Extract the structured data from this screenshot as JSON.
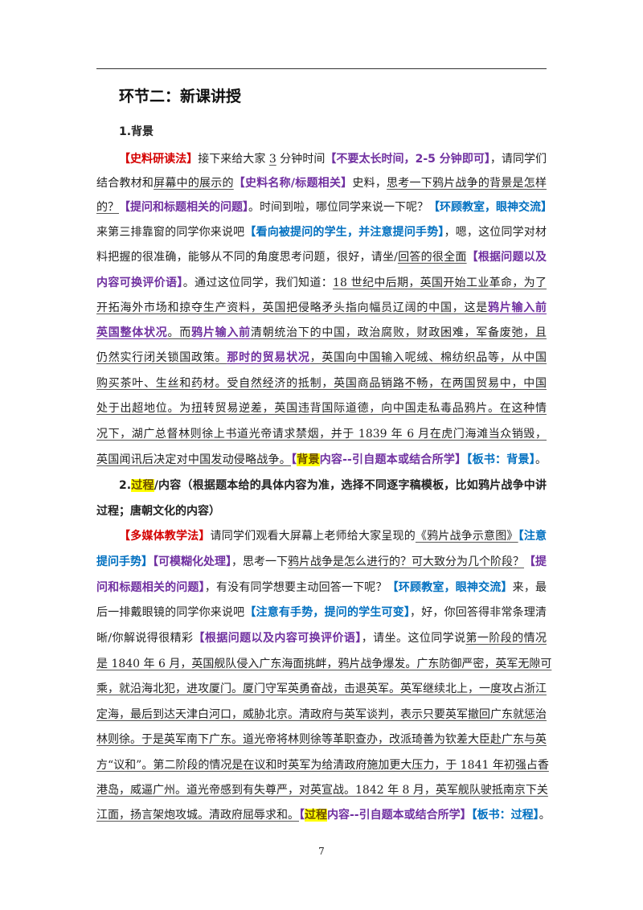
{
  "page": {
    "section_title": "环节二：新课讲授",
    "heading1": "1.背景",
    "heading2": [
      [
        {
          "t": "2.",
          "s": "n"
        },
        {
          "t": "过程",
          "s": "hl"
        },
        {
          "t": "/内容（根据题本给的具体内容为准，选择不同逐字稿模板，比如鸦片战争中讲",
          "s": "n"
        }
      ],
      [
        {
          "t": "过程；唐朝文化的内容）",
          "s": "n"
        }
      ]
    ],
    "paragraph1": [
      [
        {
          "t": "【史料研读法】",
          "s": "r"
        },
        {
          "t": "接下来给大家 ",
          "s": "n"
        },
        {
          "t": "3",
          "s": "u"
        },
        {
          "t": " 分钟时间",
          "s": "n"
        },
        {
          "t": "【不要太长时间，2-5 分钟即可】",
          "s": "p"
        },
        {
          "t": "，请同学们",
          "s": "n"
        }
      ],
      [
        {
          "t": "结合教材和",
          "s": "n"
        },
        {
          "t": "屏幕中的展示的",
          "s": "u"
        },
        {
          "t": "【史料名称/标题相关】",
          "s": "p"
        },
        {
          "t": "史料，",
          "s": "n"
        },
        {
          "t": "思考一下鸦片战争的背景是怎样",
          "s": "u"
        }
      ],
      [
        {
          "t": "的？",
          "s": "u"
        },
        {
          "t": "【提问和标题相关的问题】",
          "s": "p"
        },
        {
          "t": "。时间到啦，哪位同学来说一下呢？",
          "s": "n"
        },
        {
          "t": "【环顾教室，眼神交流】",
          "s": "b"
        }
      ],
      [
        {
          "t": "来第三排靠窗的同学你来说吧",
          "s": "n"
        },
        {
          "t": "【看向被提问的学生，并注意提问手势】",
          "s": "b"
        },
        {
          "t": "，嗯，这位同学对材",
          "s": "n"
        }
      ],
      [
        {
          "t": "料把握的很准确，能够从不同的角度思考问题，很好，请坐/",
          "s": "n"
        },
        {
          "t": "回答的很全面",
          "s": "u"
        },
        {
          "t": "【根据问题以及",
          "s": "p"
        }
      ],
      [
        {
          "t": "内容可换评价语】",
          "s": "p"
        },
        {
          "t": "。通过这位同学，我们知道：",
          "s": "n"
        },
        {
          "t": "18 世纪中后期，英国开始工业革命，为了",
          "s": "u"
        }
      ],
      [
        {
          "t": "开拓海外市场和掠夺生产资料，英国把侵略矛头指向幅员辽阔的中国，这是",
          "s": "u"
        },
        {
          "t": "鸦片输入前",
          "s": "pu"
        }
      ],
      [
        {
          "t": "英国整体状况",
          "s": "pu"
        },
        {
          "t": "。而",
          "s": "u"
        },
        {
          "t": "鸦片输入前",
          "s": "pu"
        },
        {
          "t": "清朝统治下的中国，政治腐败，财政困难，军备废弛，且",
          "s": "u"
        }
      ],
      [
        {
          "t": "仍然实行闭关锁国政策。",
          "s": "u"
        },
        {
          "t": "那时的贸易状况",
          "s": "pu"
        },
        {
          "t": "，英国向中国输入呢绒、棉纺织品等，从中国",
          "s": "u"
        }
      ],
      [
        {
          "t": "购买茶叶、生丝和药材。受自然经济的抵制，英国商品销路不畅，在两国贸易中，中国",
          "s": "u"
        }
      ],
      [
        {
          "t": "处于出超地位。为扭转贸易逆差，英国违背国际道德，向中国走私毒品鸦片。在这种情",
          "s": "u"
        }
      ],
      [
        {
          "t": "况下，湖广总督林则徐上书道光帝请求禁烟，并于 1839 年 6 月在虎门海滩当众销毁，",
          "s": "u"
        }
      ],
      [
        {
          "t": "英国闻讯后决定对中国发动侵略战争。",
          "s": "u"
        },
        {
          "t": "【",
          "s": "p"
        },
        {
          "t": "背景",
          "s": "hl"
        },
        {
          "t": "内容--引自题本或结合所学】",
          "s": "p"
        },
        {
          "t": "【板书：背景】",
          "s": "b"
        },
        {
          "t": "。",
          "s": "n"
        }
      ]
    ],
    "paragraph2": [
      [
        {
          "t": "【多媒体教学法】",
          "s": "r"
        },
        {
          "t": "请同学们观看大屏幕上老师给大家呈现的",
          "s": "n"
        },
        {
          "t": "《鸦片战争示意图》",
          "s": "u"
        },
        {
          "t": "【注意",
          "s": "b"
        }
      ],
      [
        {
          "t": "提问手势】",
          "s": "b"
        },
        {
          "t": "【可模糊化处理】",
          "s": "p"
        },
        {
          "t": "，思考一下",
          "s": "n"
        },
        {
          "t": "鸦片战争是怎么进行的？可大致分为几个阶段？",
          "s": "u"
        },
        {
          "t": "【提",
          "s": "p"
        }
      ],
      [
        {
          "t": "问和标题相关的问题】",
          "s": "p"
        },
        {
          "t": "，有没有同学想要主动回答一下呢？",
          "s": "n"
        },
        {
          "t": "【环顾教室，眼神交流】",
          "s": "b"
        },
        {
          "t": "来，最",
          "s": "n"
        }
      ],
      [
        {
          "t": "后一排戴眼镜的同学你来说吧",
          "s": "n"
        },
        {
          "t": "【注意有手势，提问的学生可变】",
          "s": "b"
        },
        {
          "t": "，好，你回答得非常条理清",
          "s": "n"
        }
      ],
      [
        {
          "t": "晰/你解说得很精彩",
          "s": "n"
        },
        {
          "t": "【根据问题以及内容可换评价语】",
          "s": "p"
        },
        {
          "t": "，请坐。这位同学说",
          "s": "n"
        },
        {
          "t": "第一阶段的情况",
          "s": "u"
        }
      ],
      [
        {
          "t": "是 1840 年 6 月，英国舰队侵入广东海面挑衅，鸦片战争爆发。广东防御严密，英军无隙可",
          "s": "u"
        }
      ],
      [
        {
          "t": "乘，就沿海北犯，进攻厦门。厦门守军英勇奋战，击退英军。英军继续北上，一度攻占浙江",
          "s": "u"
        }
      ],
      [
        {
          "t": "定海，最后到达天津白河口，威胁北京。清政府与英军谈判，表示只要英军撤回广东就惩治",
          "s": "u"
        }
      ],
      [
        {
          "t": "林则徐。于是英军南下广东。道光帝将林则徐等革职查办，改派琦善为钦差大臣赴广东与英",
          "s": "u"
        }
      ],
      [
        {
          "t": "方“议和”。第二阶段的情况是在议和时英军为给清政府施加更大压力，于 1841 年初强占香",
          "s": "u"
        }
      ],
      [
        {
          "t": "港岛，威逼广州。道光帝感到有失尊严，对英宣战。1842 年 8 月，英军舰队驶抵南京下关",
          "s": "u"
        }
      ],
      [
        {
          "t": "江面，扬言架炮攻城。清政府屈辱求和。",
          "s": "u"
        },
        {
          "t": "【",
          "s": "p"
        },
        {
          "t": "过程",
          "s": "hl"
        },
        {
          "t": "内容--引自题本或结合所学】",
          "s": "p"
        },
        {
          "t": "【板书：过程】",
          "s": "b"
        },
        {
          "t": "。",
          "s": "n"
        }
      ]
    ],
    "page_number": "7"
  }
}
